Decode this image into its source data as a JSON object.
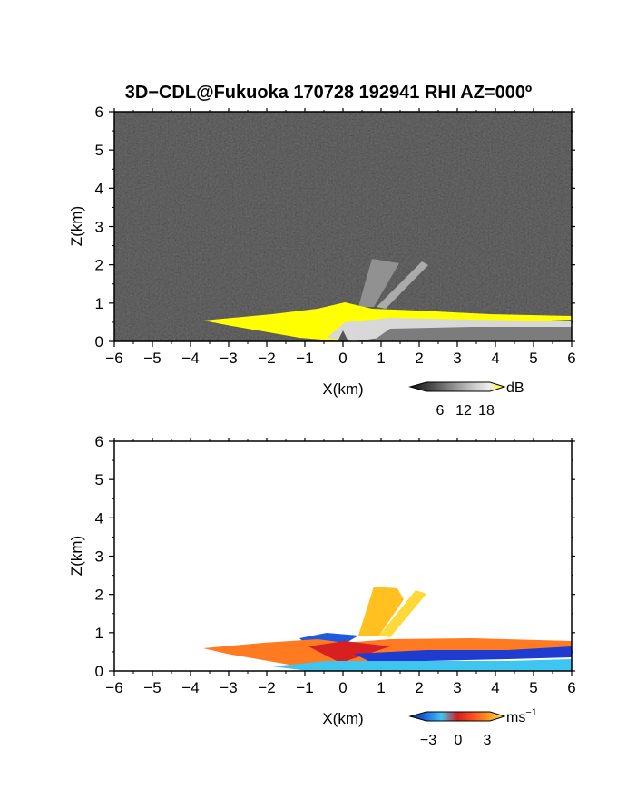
{
  "chart_data": [
    {
      "type": "heatmap",
      "title": "3D−CDL@Fukuoka 170728 192941 RHI AZ=000º",
      "xlabel": "X(km)",
      "ylabel": "Z(km)",
      "xlim": [
        -6,
        6
      ],
      "ylim": [
        0,
        6
      ],
      "xticks": [
        "−6",
        "−5",
        "−4",
        "−3",
        "−2",
        "−1",
        "0",
        "1",
        "2",
        "3",
        "4",
        "5",
        "6"
      ],
      "yticks": [
        "0",
        "1",
        "2",
        "3",
        "4",
        "5",
        "6"
      ],
      "colorbar": {
        "unit": "dB",
        "ticks": [
          "6",
          "12",
          "18"
        ],
        "colors": [
          "#141414",
          "#3a3a3a",
          "#6a6a6a",
          "#9a9a9a",
          "#c8c8c8",
          "#ececec",
          "#ffff00"
        ]
      },
      "background": "#2c2c2c",
      "features": [
        {
          "name": "low-level echo layer",
          "x_range": [
            -3.6,
            6
          ],
          "z_range": [
            0,
            0.9
          ],
          "color": "#ffff00"
        },
        {
          "name": "plume",
          "x_range": [
            0.4,
            2.2
          ],
          "z_range": [
            0.9,
            2.1
          ],
          "color": "#9a9a9a"
        }
      ]
    },
    {
      "type": "heatmap",
      "xlabel": "X(km)",
      "ylabel": "Z(km)",
      "xlim": [
        -6,
        6
      ],
      "ylim": [
        0,
        6
      ],
      "xticks": [
        "−6",
        "−5",
        "−4",
        "−3",
        "−2",
        "−1",
        "0",
        "1",
        "2",
        "3",
        "4",
        "5",
        "6"
      ],
      "yticks": [
        "0",
        "1",
        "2",
        "3",
        "4",
        "5",
        "6"
      ],
      "colorbar": {
        "unit": "ms",
        "unit_sup": "−1",
        "ticks": [
          "−3",
          "0",
          "3"
        ],
        "colors": [
          "#0a2a8a",
          "#1e6be0",
          "#3ec6f0",
          "#d02020",
          "#ff5020",
          "#ff9a20",
          "#ffe040"
        ]
      },
      "background": "#ffffff",
      "features": [
        {
          "name": "outflow layer",
          "x_range": [
            -3.6,
            6
          ],
          "z_range": [
            0.3,
            0.8
          ],
          "color": "#ff7a20"
        },
        {
          "name": "near-ground return flow",
          "x_range": [
            -1.5,
            6
          ],
          "z_range": [
            0,
            0.4
          ],
          "color": "#3ec6f0"
        },
        {
          "name": "plume",
          "x_range": [
            0.4,
            2.2
          ],
          "z_range": [
            0.9,
            2.2
          ],
          "color": "#ffc020"
        }
      ]
    }
  ]
}
